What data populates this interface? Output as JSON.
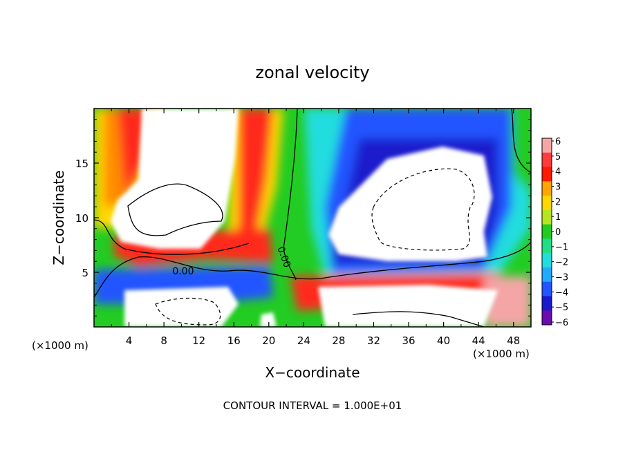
{
  "chart_data": {
    "type": "heatmap",
    "title": "zonal velocity",
    "xlabel": "X−coordinate",
    "ylabel": "Z−coordinate",
    "x_unit_left": "(×1000 m)",
    "x_unit_right": "(×1000 m)",
    "footer": "CONTOUR INTERVAL = 1.000E+01",
    "xlim": [
      0,
      50
    ],
    "ylim": [
      0,
      20
    ],
    "x_ticks": [
      4,
      8,
      12,
      16,
      20,
      24,
      28,
      32,
      36,
      40,
      44,
      48
    ],
    "y_ticks": [
      5,
      10,
      15
    ],
    "colorbar": {
      "min": -6,
      "max": 6,
      "ticks": [
        6,
        5,
        4,
        3,
        2,
        1,
        0,
        -1,
        -2,
        -3,
        -4,
        -5,
        -6
      ],
      "tick_labels": [
        "6",
        "5",
        "4",
        "3",
        "2",
        "1",
        "0",
        "−1",
        "−2",
        "−3",
        "−4",
        "−5",
        "−6"
      ],
      "colors": [
        "#f4a6a6",
        "#ff3c3c",
        "#ff1a00",
        "#ffa500",
        "#ffd700",
        "#b5e61d",
        "#22cc22",
        "#22dd88",
        "#22dddd",
        "#22aaff",
        "#2255ff",
        "#1a1acc",
        "#6a0dad"
      ]
    },
    "contour_labels": [
      {
        "text": "0.00",
        "x": 10.2,
        "y": 4.8
      },
      {
        "text": "0.00",
        "x": 21.4,
        "y": 6.3
      }
    ]
  }
}
